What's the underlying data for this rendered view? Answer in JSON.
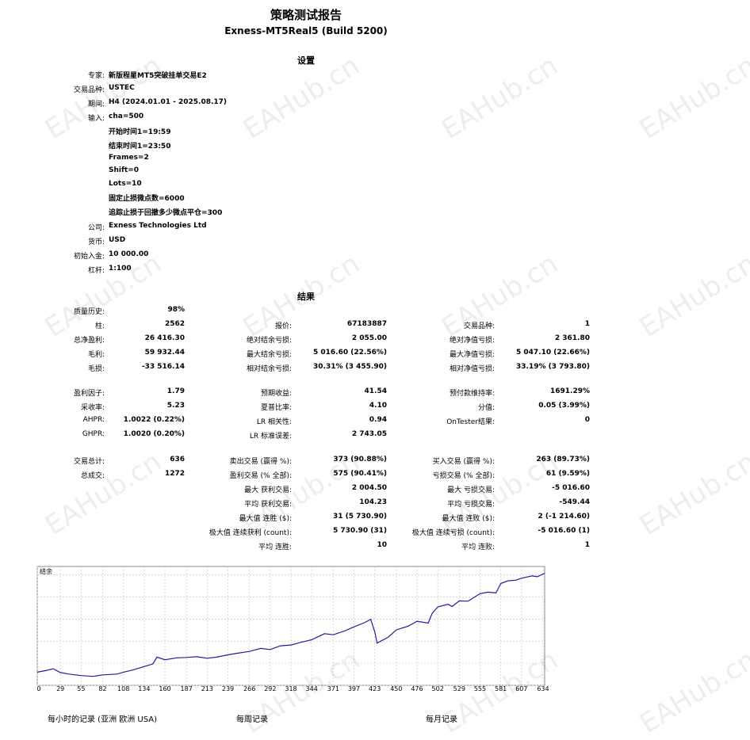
{
  "title": "策略测试报告",
  "subtitle": "Exness-MT5Real5 (Build 5200)",
  "settings_header": "设置",
  "results_header": "结果",
  "settings": {
    "expert_label": "专家:",
    "expert": "新版程星MT5突破挂单交易E2",
    "symbol_label": "交易品种:",
    "symbol": "USTEC",
    "period_label": "期间:",
    "period": "H4 (2024.01.01 - 2025.08.17)",
    "inputs_label": "输入:",
    "inputs": [
      "cha=500",
      "开始时间1=19:59",
      "结束时间1=23:50",
      "Frames=2",
      "Shift=0",
      "Lots=10",
      "固定止损微点数=6000",
      "追踪止损于回撤多少微点平仓=300"
    ],
    "company_label": "公司:",
    "company": "Exness Technologies Ltd",
    "currency_label": "货币:",
    "currency": "USD",
    "deposit_label": "初始入金:",
    "deposit": "10 000.00",
    "leverage_label": "杠杆:",
    "leverage": "1:100"
  },
  "results": {
    "r1": [
      [
        "质量历史:",
        "98%",
        "",
        "",
        "",
        ""
      ],
      [
        "柱:",
        "2562",
        "报价:",
        "67183887",
        "交易品种:",
        "1"
      ],
      [
        "总净盈利:",
        "26 416.30",
        "绝对结余亏损:",
        "2 055.00",
        "绝对净值亏损:",
        "2 361.80"
      ],
      [
        "毛利:",
        "59 932.44",
        "最大结余亏损:",
        "5 016.60 (22.56%)",
        "最大净值亏损:",
        "5 047.10 (22.66%)"
      ],
      [
        "毛损:",
        "-33 516.14",
        "相对结余亏损:",
        "30.31% (3 455.90)",
        "相对净值亏损:",
        "33.19% (3 793.80)"
      ]
    ],
    "r2": [
      [
        "盈利因子:",
        "1.79",
        "预期收益:",
        "41.54",
        "预付款维持率:",
        "1691.29%"
      ],
      [
        "采收率:",
        "5.23",
        "夏普比率:",
        "4.10",
        "分值:",
        "0.05 (3.99%)"
      ],
      [
        "AHPR:",
        "1.0022 (0.22%)",
        "LR 相关性:",
        "0.94",
        "OnTester结果:",
        "0"
      ],
      [
        "GHPR:",
        "1.0020 (0.20%)",
        "LR 标准误差:",
        "2 743.05",
        "",
        ""
      ]
    ],
    "r3": [
      [
        "交易总计:",
        "636",
        "卖出交易 (赢得 %):",
        "373 (90.88%)",
        "买入交易 (赢得 %):",
        "263 (89.73%)"
      ],
      [
        "总成交:",
        "1272",
        "盈利交易 (% 全部):",
        "575 (90.41%)",
        "亏损交易 (% 全部):",
        "61 (9.59%)"
      ],
      [
        "",
        "",
        "最大 获利交易:",
        "2 004.50",
        "最大 亏损交易:",
        "-5 016.60"
      ],
      [
        "",
        "",
        "平均 获利交易:",
        "104.23",
        "平均 亏损交易:",
        "-549.44"
      ],
      [
        "",
        "",
        "最大值 连胜 ($):",
        "31 (5 730.90)",
        "最大值 连败 ($):",
        "2 (-1 214.60)"
      ],
      [
        "",
        "",
        "极大值 连续获利 (count):",
        "5 730.90 (31)",
        "极大值 连续亏损 (count):",
        "-5 016.60 (1)"
      ],
      [
        "",
        "",
        "平均 连胜:",
        "10",
        "平均 连败:",
        "1"
      ]
    ]
  },
  "chart_data": {
    "type": "line",
    "title": "结余",
    "xlabel": "",
    "ylabel": "",
    "x_ticks": [
      0,
      29,
      55,
      82,
      108,
      134,
      160,
      187,
      213,
      239,
      266,
      292,
      318,
      344,
      371,
      397,
      423,
      450,
      476,
      502,
      529,
      555,
      581,
      607,
      634
    ],
    "y_ticks": [
      6521,
      12368,
      18215,
      24062,
      29909,
      35755
    ],
    "xlim": [
      0,
      636
    ],
    "ylim": [
      6521,
      38000
    ],
    "grid": true,
    "series": [
      {
        "name": "",
        "color": "#1e1ea0",
        "x": [
          0,
          10,
          20,
          29,
          40,
          55,
          70,
          82,
          100,
          108,
          120,
          134,
          145,
          150,
          160,
          175,
          187,
          200,
          213,
          225,
          239,
          250,
          266,
          280,
          292,
          305,
          318,
          330,
          344,
          360,
          371,
          385,
          397,
          410,
          418,
          423,
          426,
          440,
          450,
          465,
          476,
          490,
          495,
          502,
          515,
          520,
          529,
          540,
          555,
          565,
          575,
          581,
          590,
          600,
          607,
          620,
          627,
          634,
          636
        ],
        "y": [
          10000,
          10400,
          10900,
          9900,
          9500,
          9100,
          8900,
          9300,
          9500,
          10000,
          10600,
          11500,
          12200,
          14000,
          13300,
          13800,
          13900,
          14100,
          13700,
          14000,
          14600,
          15000,
          15500,
          16300,
          16000,
          17000,
          17200,
          17900,
          18600,
          20200,
          19900,
          20900,
          22000,
          23100,
          24000,
          20700,
          17700,
          19300,
          21200,
          22200,
          23500,
          23000,
          25600,
          27300,
          28000,
          27400,
          28900,
          28800,
          30800,
          31200,
          31000,
          33500,
          34200,
          34400,
          34900,
          35500,
          35300,
          36000,
          36200
        ]
      }
    ]
  },
  "bottom": {
    "hourly": "每小时的记录 (亚洲 欧洲 USA)",
    "weekly": "每周记录",
    "monthly": "每月记录"
  },
  "watermark": "EAHub.cn"
}
